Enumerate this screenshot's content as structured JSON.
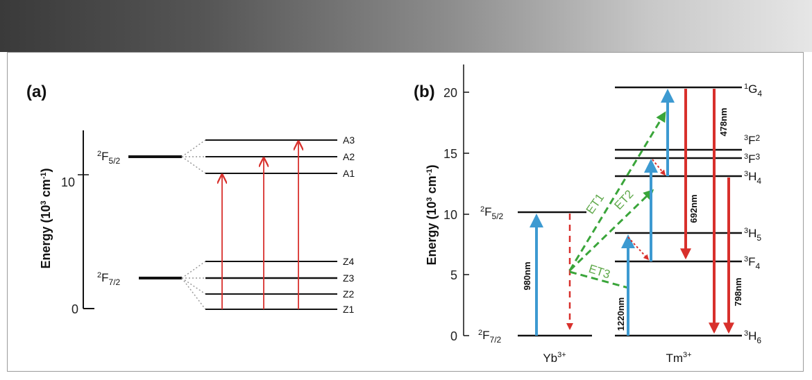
{
  "panel_a": {
    "label": "(a)",
    "ylabel": "Energy (10",
    "ylabel_sup": "3",
    "ylabel_tail": " cm",
    "ylabel_sup2": "-1",
    "ylabel_close": ")",
    "ticks": [
      "0",
      "10"
    ],
    "manifold_upper": {
      "base": "F",
      "sup": "2",
      "sub": "5/2"
    },
    "manifold_lower": {
      "base": "F",
      "sup": "2",
      "sub": "7/2"
    },
    "upper_levels": [
      "A3",
      "A2",
      "A1"
    ],
    "lower_levels": [
      "Z4",
      "Z3",
      "Z2",
      "Z1"
    ]
  },
  "panel_b": {
    "label": "(b)",
    "ylabel": "Energy (10",
    "ylabel_sup": "3",
    "ylabel_tail": " cm",
    "ylabel_sup2": "-1",
    "ylabel_close": ")",
    "ticks": [
      "0",
      "5",
      "10",
      "15",
      "20"
    ],
    "yb": {
      "name": "Yb",
      "charge": "3+",
      "upper": {
        "base": "F",
        "sup": "2",
        "sub": "5/2"
      },
      "lower": {
        "base": "F",
        "sup": "2",
        "sub": "7/2"
      }
    },
    "tm": {
      "name": "Tm",
      "charge": "3+",
      "levels": [
        {
          "base": "G",
          "sup": "1",
          "sub": "4"
        },
        {
          "base": "F",
          "sup": "3",
          "sub": "2"
        },
        {
          "base": "F",
          "sup": "3",
          "sub": "3"
        },
        {
          "base": "H",
          "sup": "3",
          "sub": "4"
        },
        {
          "base": "H",
          "sup": "3",
          "sub": "5"
        },
        {
          "base": "F",
          "sup": "3",
          "sub": "4"
        },
        {
          "base": "H",
          "sup": "3",
          "sub": "6"
        }
      ]
    },
    "wavelengths": [
      "980nm",
      "1220nm",
      "478nm",
      "692nm",
      "798nm"
    ],
    "transfers": [
      "ET1",
      "ET2",
      "ET3"
    ]
  },
  "colors": {
    "blue": "#3d9ad1",
    "red": "#d8302c",
    "green": "#3aa53a",
    "et_text": "#5fa84a"
  }
}
